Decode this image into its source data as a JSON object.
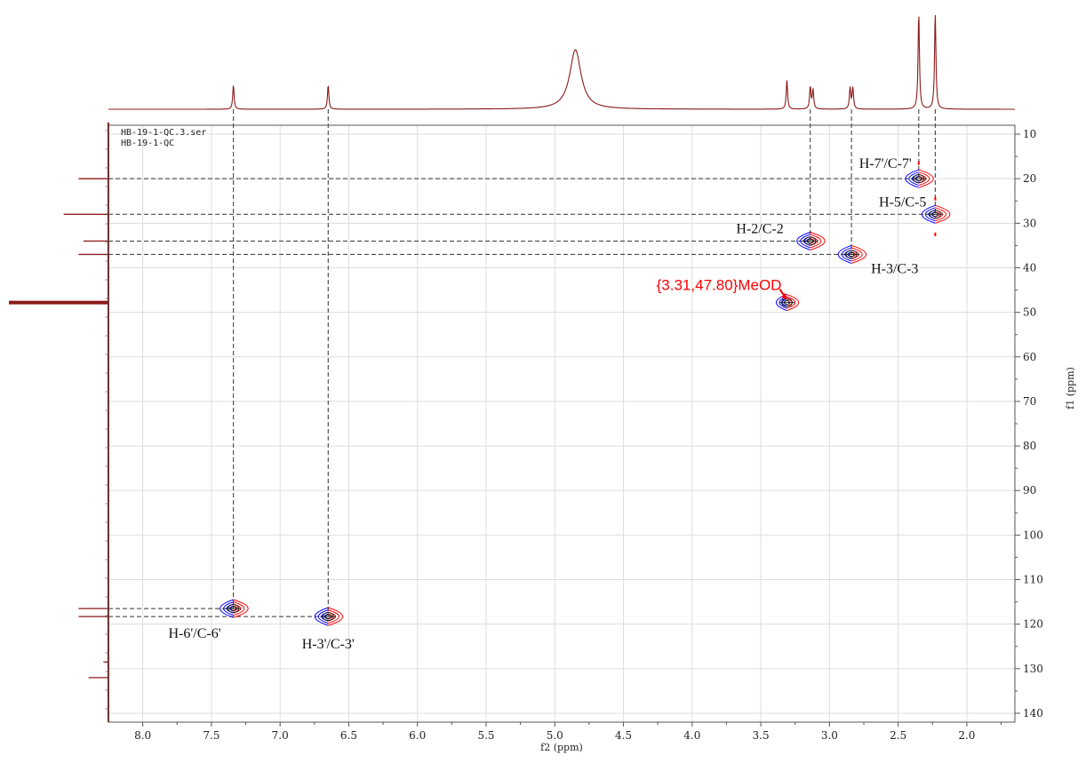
{
  "chart_data": {
    "type": "scatter",
    "title": "",
    "dataset_labels": [
      "HB-19-1-QC.3.ser",
      "HB-19-1-QC"
    ],
    "xlabel": "f2 (ppm)",
    "ylabel": "f1 (ppm)",
    "x_range": [
      8.25,
      1.65
    ],
    "y_range": [
      8,
      142
    ],
    "x_ticks": [
      "8.0",
      "7.5",
      "7.0",
      "6.5",
      "6.0",
      "5.5",
      "5.0",
      "4.5",
      "4.0",
      "3.5",
      "3.0",
      "2.5",
      "2.0"
    ],
    "y_ticks": [
      "10",
      "20",
      "30",
      "40",
      "50",
      "60",
      "70",
      "80",
      "90",
      "100",
      "110",
      "120",
      "130",
      "140"
    ],
    "grid": true,
    "colors": {
      "spectrum": "#8b1a1a",
      "positive": "#ff0000",
      "negative": "#0000ff",
      "dashes": "#333333"
    },
    "correlations": [
      {
        "label": "H-7'/C-7'",
        "x": 2.35,
        "y": 20.0
      },
      {
        "label": "H-5/C-5",
        "x": 2.23,
        "y": 28.0
      },
      {
        "label": "H-2/C-2",
        "x": 3.14,
        "y": 34.0
      },
      {
        "label": "H-3/C-3",
        "x": 2.84,
        "y": 37.0
      },
      {
        "label": "H-6'/C-6'",
        "x": 7.34,
        "y": 116.5
      },
      {
        "label": "H-3'/C-3'",
        "x": 6.65,
        "y": 118.3
      }
    ],
    "solvent_peak": {
      "label": "{3.31,47.80}MeOD",
      "x": 3.31,
      "y": 47.8
    },
    "f2_projection_peaks": [
      {
        "x": 7.34,
        "height": 0.25
      },
      {
        "x": 6.65,
        "height": 0.25
      },
      {
        "x": 4.85,
        "height": 0.62,
        "width": 0.05
      },
      {
        "x": 3.31,
        "height": 0.3
      },
      {
        "x": 3.14,
        "height": 0.23
      },
      {
        "x": 3.12,
        "height": 0.2
      },
      {
        "x": 2.85,
        "height": 0.22
      },
      {
        "x": 2.83,
        "height": 0.22
      },
      {
        "x": 2.35,
        "height": 1.0
      },
      {
        "x": 2.23,
        "height": 1.0
      }
    ],
    "f1_projection_peaks": [
      {
        "y": 20.0,
        "height": 0.3
      },
      {
        "y": 28.0,
        "height": 0.45
      },
      {
        "y": 34.0,
        "height": 0.25
      },
      {
        "y": 37.0,
        "height": 0.3
      },
      {
        "y": 47.8,
        "height": 1.0
      },
      {
        "y": 116.5,
        "height": 0.3
      },
      {
        "y": 118.3,
        "height": 0.3
      },
      {
        "y": 128.5,
        "height": 0.05
      },
      {
        "y": 132.0,
        "height": 0.2
      }
    ]
  }
}
